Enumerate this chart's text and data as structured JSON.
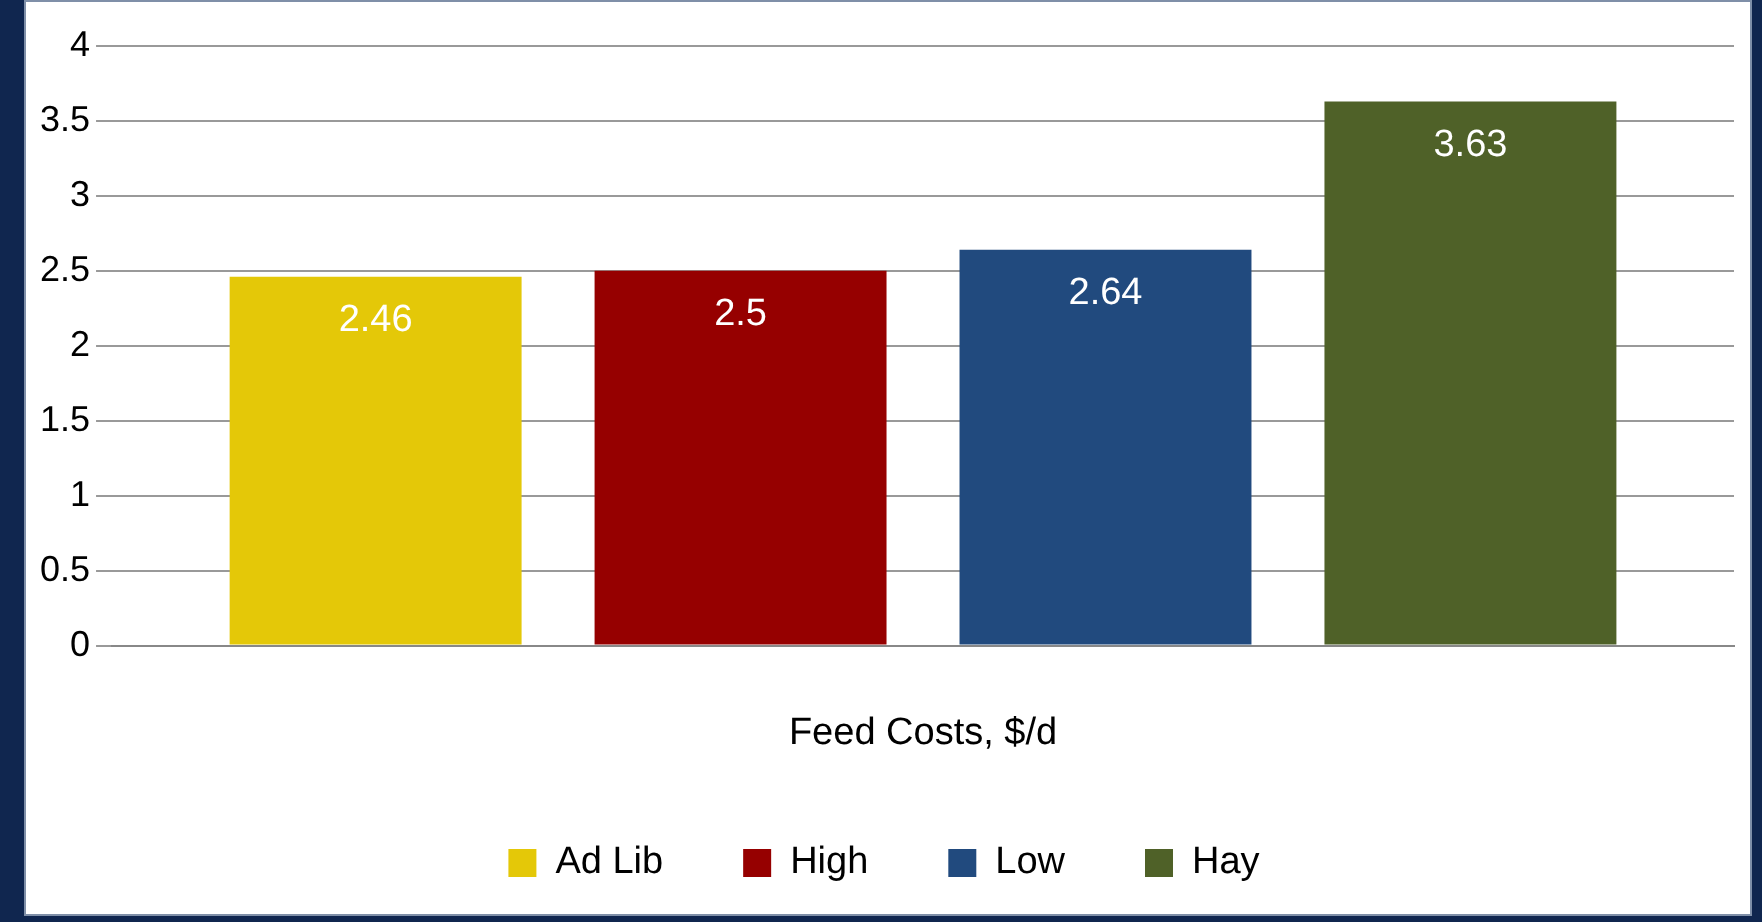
{
  "chart_data": {
    "type": "bar",
    "xlabel": "Feed Costs, $/d",
    "categories": [
      null
    ],
    "series": [
      {
        "name": "Ad Lib",
        "color": "#e4c808",
        "values": [
          2.46
        ]
      },
      {
        "name": "High",
        "color": "#960000",
        "values": [
          2.5
        ]
      },
      {
        "name": "Low",
        "color": "#214a7e",
        "values": [
          2.64
        ]
      },
      {
        "name": "Hay",
        "color": "#4f6128",
        "values": [
          3.63
        ]
      }
    ],
    "ylim": [
      0,
      4
    ],
    "yticks": [
      0,
      0.5,
      1,
      1.5,
      2,
      2.5,
      3,
      3.5,
      4
    ],
    "grid": "y",
    "legend": "bottom",
    "data_labels": true
  }
}
